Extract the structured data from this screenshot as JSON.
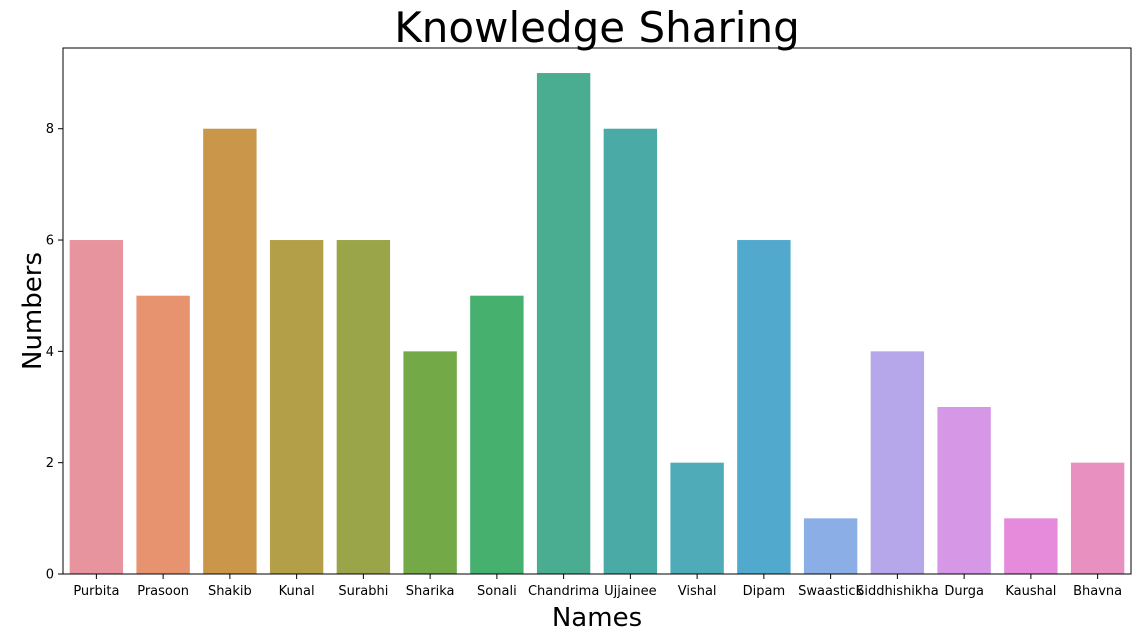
{
  "chart_data": {
    "type": "bar",
    "title": "Knowledge Sharing",
    "xlabel": "Names",
    "ylabel": "Numbers",
    "categories": [
      "Purbita",
      "Prasoon",
      "Shakib",
      "Kunal",
      "Surabhi",
      "Sharika",
      "Sonali",
      "Chandrima",
      "Ujjainee",
      "Vishal",
      "Dipam",
      "Swaastick",
      "Siddhishikha",
      "Durga",
      "Kaushal",
      "Bhavna"
    ],
    "values": [
      6,
      5,
      8,
      6,
      6,
      4,
      5,
      9,
      8,
      2,
      6,
      1,
      4,
      3,
      1,
      2
    ],
    "colors": [
      "#e8949f",
      "#e8936f",
      "#c9964a",
      "#b29f48",
      "#99a548",
      "#73aa47",
      "#46b06f",
      "#4aac91",
      "#49aaa6",
      "#4fabb8",
      "#51a9ce",
      "#8baee6",
      "#b5a7ea",
      "#d597e6",
      "#e68bdb",
      "#e890bf"
    ],
    "ylim": [
      0,
      9.45
    ],
    "yticks": [
      0,
      2,
      4,
      6,
      8
    ],
    "grid": false
  }
}
